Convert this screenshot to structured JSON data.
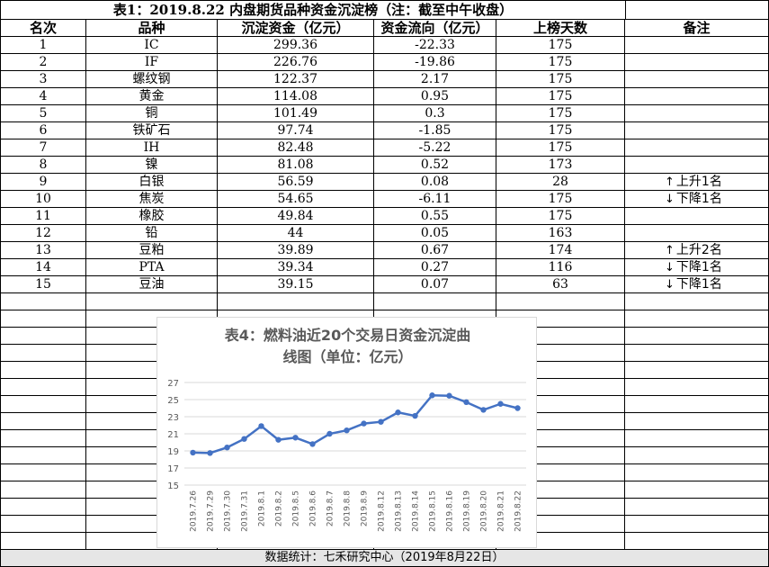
{
  "table": {
    "title": "表1：2019.8.22 内盘期货品种资金沉淀榜（注：截至中午收盘）",
    "headers": [
      "名次",
      "品种",
      "沉淀资金（亿元）",
      "资金流向（亿元）",
      "上榜天数",
      "备注"
    ],
    "rows": [
      {
        "rank": "1",
        "name": "IC",
        "sediment": "299.36",
        "flow": "-22.33",
        "days": "175",
        "remark": ""
      },
      {
        "rank": "2",
        "name": "IF",
        "sediment": "226.76",
        "flow": "-19.86",
        "days": "175",
        "remark": ""
      },
      {
        "rank": "3",
        "name": "螺纹钢",
        "sediment": "122.37",
        "flow": "2.17",
        "days": "175",
        "remark": ""
      },
      {
        "rank": "4",
        "name": "黄金",
        "sediment": "114.08",
        "flow": "0.95",
        "days": "175",
        "remark": ""
      },
      {
        "rank": "5",
        "name": "铜",
        "sediment": "101.49",
        "flow": "0.3",
        "days": "175",
        "remark": ""
      },
      {
        "rank": "6",
        "name": "铁矿石",
        "sediment": "97.74",
        "flow": "-1.85",
        "days": "175",
        "remark": ""
      },
      {
        "rank": "7",
        "name": "IH",
        "sediment": "82.48",
        "flow": "-5.22",
        "days": "175",
        "remark": ""
      },
      {
        "rank": "8",
        "name": "镍",
        "sediment": "81.08",
        "flow": "0.52",
        "days": "173",
        "remark": ""
      },
      {
        "rank": "9",
        "name": "白银",
        "sediment": "56.59",
        "flow": "0.08",
        "days": "28",
        "remark": "上升1名",
        "arrow": "↑"
      },
      {
        "rank": "10",
        "name": "焦炭",
        "sediment": "54.65",
        "flow": "-6.11",
        "days": "175",
        "remark": "下降1名",
        "arrow": "↓"
      },
      {
        "rank": "11",
        "name": "橡胶",
        "sediment": "49.84",
        "flow": "0.55",
        "days": "175",
        "remark": ""
      },
      {
        "rank": "12",
        "name": "铅",
        "sediment": "44",
        "flow": "0.05",
        "days": "163",
        "remark": ""
      },
      {
        "rank": "13",
        "name": "豆粕",
        "sediment": "39.89",
        "flow": "0.67",
        "days": "174",
        "remark": "上升2名",
        "arrow": "↑"
      },
      {
        "rank": "14",
        "name": "PTA",
        "sediment": "39.34",
        "flow": "0.27",
        "days": "116",
        "remark": "下降1名",
        "arrow": "↓"
      },
      {
        "rank": "15",
        "name": "豆油",
        "sediment": "39.15",
        "flow": "0.07",
        "days": "63",
        "remark": "下降1名",
        "arrow": "↓"
      }
    ],
    "empty_row_count": 15
  },
  "footer": "数据统计：七禾研究中心（2019年8月22日）",
  "chart_data": {
    "type": "line",
    "title_line1": "表4：燃料油近20个交易日资金沉淀曲",
    "title_line2": "线图（单位：亿元）",
    "categories": [
      "2019.7.26",
      "2019.7.29",
      "2019.7.30",
      "2019.7.31",
      "2019.8.1",
      "2019.8.2",
      "2019.8.5",
      "2019.8.6",
      "2019.8.7",
      "2019.8.8",
      "2019.8.9",
      "2019.8.12",
      "2019.8.13",
      "2019.8.14",
      "2019.8.15",
      "2019.8.16",
      "2019.8.19",
      "2019.8.20",
      "2019.8.21",
      "2019.8.22"
    ],
    "values": [
      18.8,
      18.75,
      19.4,
      20.4,
      21.9,
      20.3,
      20.55,
      19.8,
      21.0,
      21.4,
      22.2,
      22.4,
      23.5,
      23.1,
      25.5,
      25.45,
      24.7,
      23.8,
      24.5,
      24.0
    ],
    "ylim": [
      15,
      27
    ],
    "yticks": [
      "15",
      "17",
      "19",
      "21",
      "23",
      "25",
      "27"
    ],
    "grid": true,
    "line_color": "#4472c4"
  }
}
